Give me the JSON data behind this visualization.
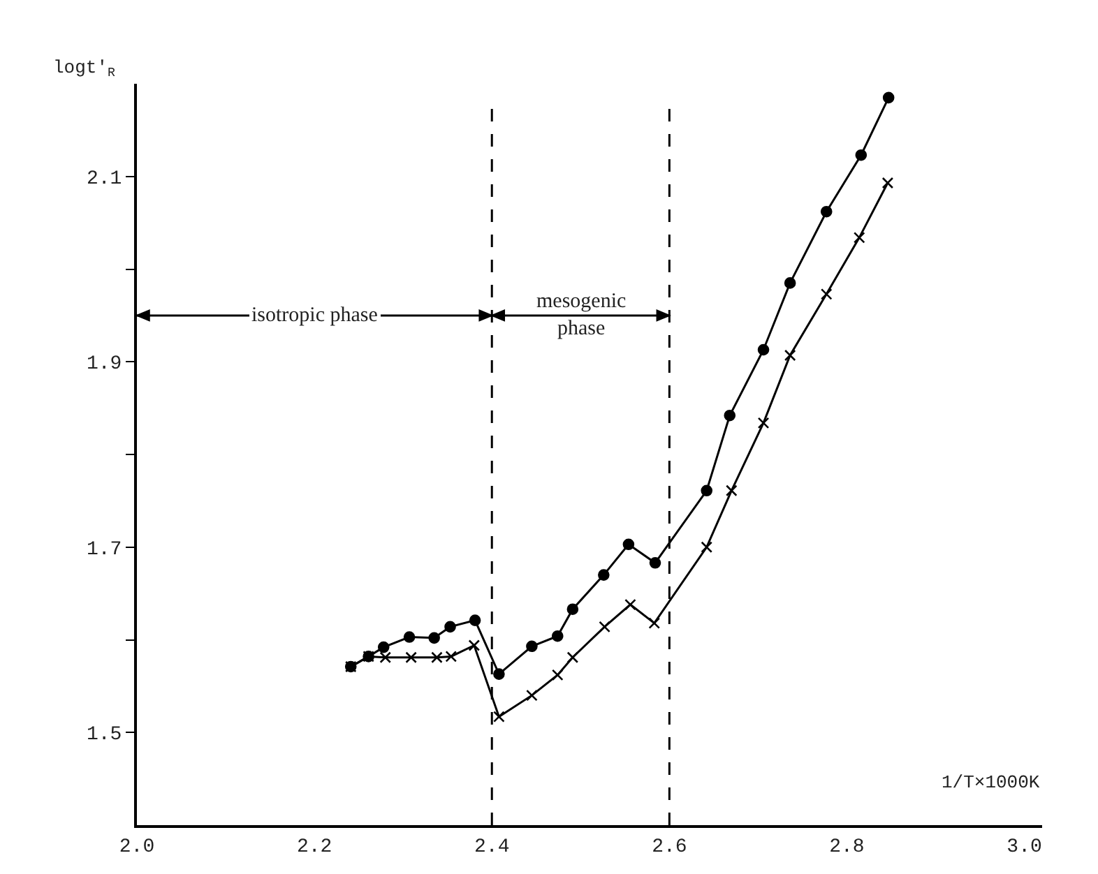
{
  "chart_data": {
    "type": "line",
    "xlabel": "1/T×1000K",
    "ylabel": "logt'$_{R}$",
    "xlim": [
      2.0,
      3.02
    ],
    "xticks": [
      {
        "value": 2.0,
        "label": "2.0"
      },
      2.2,
      2.4,
      2.6,
      2.8,
      {
        "value": 3.0,
        "label": "3.0"
      }
    ],
    "ylim": [
      1.4,
      2.2
    ],
    "yticks": [
      1.5,
      {
        "value": 1.6,
        "label": null
      },
      1.7,
      {
        "value": 1.8,
        "label": null
      },
      1.9,
      {
        "value": 2.0,
        "label": null
      },
      2.1
    ],
    "line_style": "solid",
    "series": [
      {
        "color": "#000000",
        "marker": "cross",
        "x": [
          2.241,
          2.261,
          2.28,
          2.309,
          2.338,
          2.354,
          2.38,
          2.408,
          2.445,
          2.474,
          2.491,
          2.527,
          2.556,
          2.583,
          2.642,
          2.67,
          2.706,
          2.736,
          2.777,
          2.814,
          2.846
        ],
        "values": [
          1.571,
          1.582,
          1.581,
          1.581,
          1.581,
          1.582,
          1.594,
          1.517,
          1.54,
          1.562,
          1.581,
          1.614,
          1.638,
          1.618,
          1.7,
          1.761,
          1.834,
          1.907,
          1.973,
          2.034,
          2.093
        ]
      },
      {
        "color": "#000000",
        "marker": "circle",
        "x": [
          2.241,
          2.261,
          2.278,
          2.307,
          2.335,
          2.353,
          2.381,
          2.408,
          2.445,
          2.474,
          2.491,
          2.526,
          2.554,
          2.584,
          2.642,
          2.668,
          2.706,
          2.736,
          2.777,
          2.816,
          2.847
        ],
        "values": [
          1.571,
          1.582,
          1.592,
          1.603,
          1.602,
          1.614,
          1.621,
          1.563,
          1.593,
          1.604,
          1.633,
          1.67,
          1.703,
          1.683,
          1.761,
          1.842,
          1.913,
          1.985,
          2.062,
          2.123,
          2.185
        ]
      }
    ],
    "ref_lines": [
      {
        "axis": "x",
        "value": 2.4,
        "line_style": "dashed",
        "color": "#000000"
      },
      {
        "axis": "x",
        "value": 2.6,
        "line_style": "dashed",
        "color": "#000000"
      }
    ],
    "annotations": [
      "isotropic phase",
      "mesogenic\nphase"
    ]
  }
}
